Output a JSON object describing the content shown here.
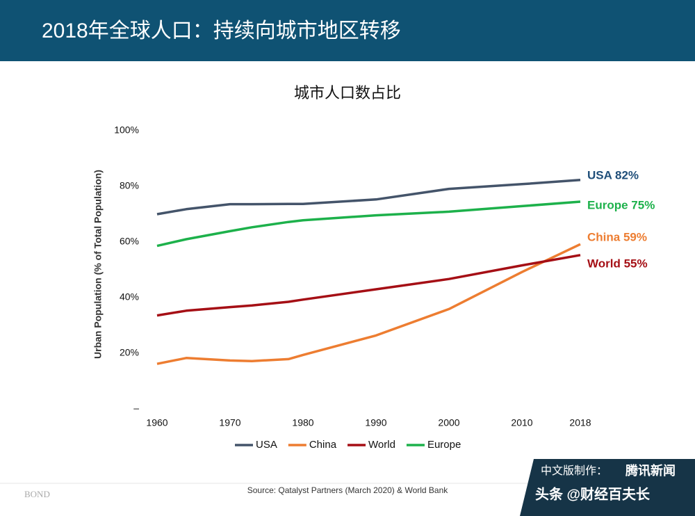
{
  "header": {
    "title": "2018年全球人口：持续向城市地区转移"
  },
  "chart_data": {
    "type": "line",
    "title": "城市人口数占比",
    "y_label": "Urban Population (% of Total Population)",
    "x": [
      1960,
      1964,
      1970,
      1973,
      1978,
      1980,
      1990,
      2000,
      2010,
      2018
    ],
    "xlim": [
      1960,
      2018
    ],
    "xticks": [
      1960,
      1970,
      1980,
      1990,
      2000,
      2010,
      2018
    ],
    "ylim": [
      0,
      100
    ],
    "yticks": [
      {
        "value": 0,
        "label": "–"
      },
      {
        "value": 20,
        "label": "20%"
      },
      {
        "value": 40,
        "label": "40%"
      },
      {
        "value": 60,
        "label": "60%"
      },
      {
        "value": 80,
        "label": "80%"
      },
      {
        "value": 100,
        "label": "100%"
      }
    ],
    "grid": false,
    "series": [
      {
        "name": "USA",
        "color": "#44546a",
        "values": [
          70,
          71.8,
          73.6,
          73.6,
          73.7,
          73.7,
          75.3,
          79.1,
          80.8,
          82.3
        ],
        "end_label": "USA 82%",
        "end_label_color": "#1f4e79"
      },
      {
        "name": "China",
        "color": "#ed7d31",
        "values": [
          16.2,
          18.3,
          17.4,
          17.2,
          17.9,
          19.4,
          26.4,
          35.9,
          49.2,
          59.2
        ],
        "end_label": "China 59%",
        "end_label_color": "#ed7d31"
      },
      {
        "name": "World",
        "color": "#a50f15",
        "values": [
          33.6,
          35.3,
          36.6,
          37.2,
          38.5,
          39.3,
          43,
          46.7,
          51.6,
          55.3
        ],
        "end_label": "World 55%",
        "end_label_color": "#a50f15"
      },
      {
        "name": "Europe",
        "color": "#1db14b",
        "values": [
          58.6,
          61,
          63.9,
          65.3,
          67.2,
          67.8,
          69.6,
          70.9,
          72.9,
          74.5
        ],
        "end_label": "Europe 75%",
        "end_label_color": "#1db14b"
      }
    ],
    "source": "Source: Qatalyst Partners (March 2020) & World Bank"
  },
  "footer": {
    "brand": "BOND",
    "credit": "中文版制作：",
    "credit_brand": "腾讯新闻",
    "account": "头条 @财经百夫长"
  }
}
